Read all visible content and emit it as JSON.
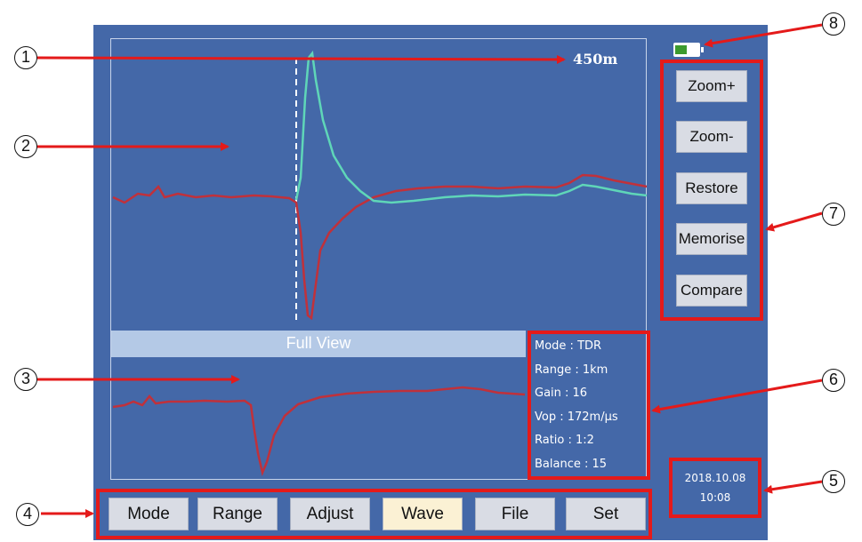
{
  "screen": {
    "distance_marker": "450m",
    "full_view_label": "Full View"
  },
  "info_panel": {
    "mode": "Mode : TDR",
    "range": "Range : 1km",
    "gain": "Gain : 16",
    "vop": "Vop : 172m/μs",
    "ratio": "Ratio : 1:2",
    "balance": "Balance : 15"
  },
  "side_buttons": {
    "zoom_in": "Zoom+",
    "zoom_out": "Zoom-",
    "restore": "Restore",
    "memorise": "Memorise",
    "compare": "Compare"
  },
  "menu": {
    "mode": "Mode",
    "range": "Range",
    "adjust": "Adjust",
    "wave": "Wave",
    "file": "File",
    "set": "Set"
  },
  "datetime": {
    "date": "2018.10.08",
    "time": "10:08"
  },
  "callouts": {
    "c1": "1",
    "c2": "2",
    "c3": "3",
    "c4": "4",
    "c5": "5",
    "c6": "6",
    "c7": "7",
    "c8": "8"
  },
  "colors": {
    "screen_bg": "#4468a8",
    "waveform_red": "#c0313b",
    "waveform_teal": "#5fd6b8",
    "highlight_red": "#e41a1a",
    "battery_green": "#3c9a2e"
  },
  "battery": {
    "icon": "battery-icon",
    "level": 0.5
  }
}
